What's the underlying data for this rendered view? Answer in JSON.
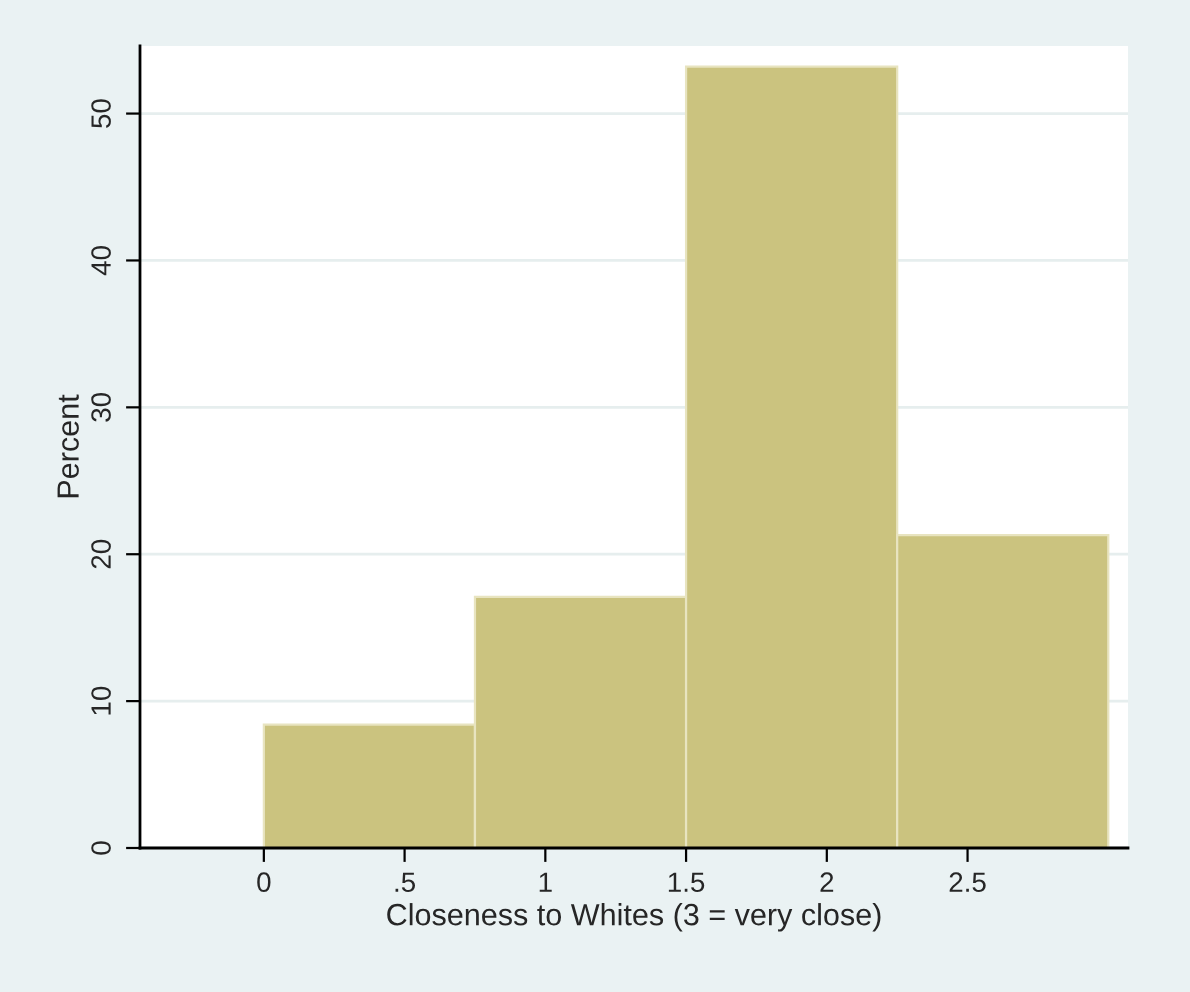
{
  "chart_data": {
    "type": "histogram",
    "xlabel": "Closeness to Whites (3 = very close)",
    "ylabel": "Percent",
    "bins": [
      0,
      0.75,
      1.5,
      2.25,
      3
    ],
    "values": [
      8.4,
      17.1,
      53.2,
      21.3
    ],
    "color": "#cbc37f",
    "xlim": [
      -0.44,
      3.07
    ],
    "ylim": [
      0,
      54.6
    ],
    "xticks": [
      0,
      {
        "value": 0.5,
        "label": ".5"
      },
      1,
      1.5,
      2,
      2.5
    ],
    "yticks": [
      0,
      10,
      20,
      30,
      40,
      50
    ],
    "grid": "y"
  }
}
